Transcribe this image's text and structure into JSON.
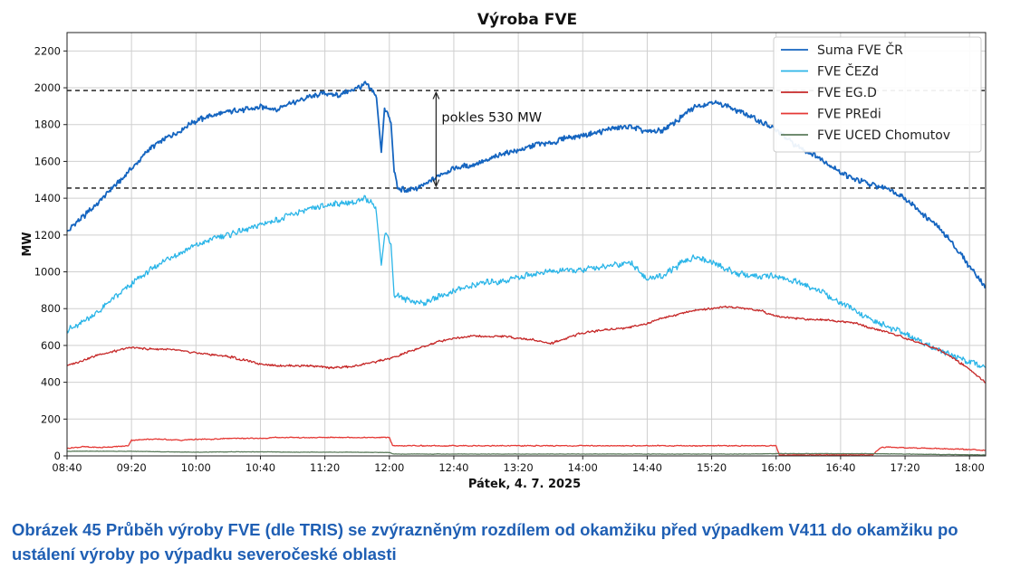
{
  "chart_data": {
    "type": "line",
    "title": "Výroba FVE",
    "xlabel": "Pátek, 4. 7. 2025",
    "ylabel": "MW",
    "xlim": [
      520,
      1090
    ],
    "ylim": [
      0,
      2300
    ],
    "x_unit": "minutes since midnight",
    "x_ticks": [
      520,
      560,
      600,
      640,
      680,
      720,
      760,
      800,
      840,
      880,
      920,
      960,
      1000,
      1040,
      1080
    ],
    "x_tick_labels": [
      "08:40",
      "09:20",
      "10:00",
      "10:40",
      "11:20",
      "12:00",
      "12:40",
      "13:20",
      "14:00",
      "14:40",
      "15:20",
      "16:00",
      "16:40",
      "17:20",
      "18:00"
    ],
    "y_ticks": [
      0,
      200,
      400,
      600,
      800,
      1000,
      1200,
      1400,
      1600,
      1800,
      2000,
      2200
    ],
    "y_tick_labels": [
      "0",
      "200",
      "400",
      "600",
      "800",
      "1000",
      "1200",
      "1400",
      "1600",
      "1800",
      "2000",
      "2200"
    ],
    "grid": true,
    "legend_position": "top-right",
    "series": [
      {
        "name": "Suma FVE ČR",
        "color": "#1565c0",
        "x": [
          520,
          530,
          540,
          550,
          560,
          570,
          580,
          590,
          600,
          610,
          620,
          630,
          640,
          650,
          660,
          670,
          680,
          690,
          700,
          705,
          710,
          712,
          715,
          717,
          719,
          721,
          723,
          725,
          730,
          740,
          750,
          760,
          770,
          780,
          790,
          800,
          810,
          820,
          830,
          840,
          850,
          860,
          870,
          880,
          890,
          900,
          910,
          920,
          930,
          940,
          950,
          960,
          970,
          980,
          990,
          1000,
          1010,
          1020,
          1030,
          1040,
          1050,
          1060,
          1070,
          1080,
          1090
        ],
        "y": [
          1220,
          1300,
          1380,
          1470,
          1560,
          1660,
          1720,
          1770,
          1820,
          1850,
          1870,
          1880,
          1900,
          1880,
          1920,
          1950,
          1970,
          1960,
          2000,
          2020,
          1980,
          1940,
          1650,
          1880,
          1870,
          1800,
          1550,
          1460,
          1440,
          1460,
          1520,
          1560,
          1580,
          1600,
          1640,
          1660,
          1690,
          1700,
          1730,
          1740,
          1760,
          1780,
          1790,
          1760,
          1770,
          1830,
          1900,
          1920,
          1900,
          1860,
          1820,
          1770,
          1700,
          1650,
          1600,
          1540,
          1500,
          1470,
          1450,
          1400,
          1320,
          1250,
          1150,
          1030,
          920
        ]
      },
      {
        "name": "FVE ČEZd",
        "color": "#2bb5e8",
        "x": [
          520,
          530,
          540,
          550,
          560,
          570,
          580,
          590,
          600,
          610,
          620,
          630,
          640,
          650,
          660,
          670,
          680,
          690,
          700,
          705,
          710,
          712,
          715,
          717,
          719,
          721,
          723,
          725,
          730,
          740,
          750,
          760,
          770,
          780,
          790,
          800,
          810,
          820,
          830,
          840,
          850,
          860,
          870,
          880,
          890,
          900,
          910,
          920,
          930,
          940,
          950,
          960,
          970,
          980,
          990,
          1000,
          1010,
          1020,
          1030,
          1040,
          1050,
          1060,
          1070,
          1080,
          1090
        ],
        "y": [
          680,
          730,
          790,
          860,
          930,
          1000,
          1060,
          1100,
          1140,
          1180,
          1200,
          1230,
          1260,
          1280,
          1310,
          1340,
          1360,
          1370,
          1380,
          1400,
          1370,
          1330,
          1040,
          1200,
          1190,
          1150,
          860,
          880,
          850,
          830,
          860,
          900,
          920,
          940,
          950,
          970,
          990,
          1000,
          1010,
          1010,
          1020,
          1040,
          1050,
          960,
          980,
          1040,
          1080,
          1060,
          1010,
          980,
          970,
          980,
          950,
          920,
          880,
          830,
          780,
          740,
          700,
          660,
          620,
          580,
          540,
          510,
          480
        ]
      },
      {
        "name": "FVE EG.D",
        "color": "#c62828",
        "x": [
          520,
          530,
          540,
          550,
          560,
          570,
          580,
          590,
          600,
          610,
          620,
          630,
          640,
          650,
          660,
          670,
          680,
          690,
          700,
          705,
          710,
          712,
          715,
          717,
          719,
          721,
          723,
          725,
          730,
          740,
          750,
          760,
          770,
          780,
          790,
          800,
          810,
          820,
          830,
          840,
          850,
          860,
          870,
          880,
          890,
          900,
          910,
          920,
          930,
          940,
          950,
          960,
          970,
          980,
          990,
          1000,
          1010,
          1020,
          1030,
          1040,
          1050,
          1060,
          1070,
          1080,
          1090
        ],
        "y": [
          490,
          520,
          550,
          570,
          590,
          580,
          580,
          570,
          560,
          550,
          540,
          520,
          500,
          490,
          490,
          490,
          480,
          480,
          490,
          500,
          510,
          510,
          520,
          520,
          530,
          530,
          540,
          540,
          560,
          590,
          620,
          640,
          650,
          650,
          650,
          640,
          630,
          610,
          640,
          670,
          680,
          690,
          700,
          720,
          750,
          770,
          790,
          800,
          810,
          800,
          790,
          760,
          750,
          740,
          740,
          730,
          720,
          690,
          670,
          640,
          610,
          580,
          530,
          470,
          400
        ]
      },
      {
        "name": "FVE PREdi",
        "color": "#e53935",
        "x": [
          520,
          530,
          540,
          550,
          558,
          560,
          570,
          580,
          590,
          600,
          610,
          620,
          630,
          640,
          650,
          660,
          670,
          680,
          690,
          700,
          710,
          720,
          722,
          730,
          760,
          800,
          840,
          880,
          920,
          960,
          962,
          980,
          1000,
          1020,
          1025,
          1030,
          1040,
          1060,
          1080,
          1090
        ],
        "y": [
          40,
          50,
          45,
          50,
          55,
          85,
          90,
          90,
          85,
          90,
          90,
          95,
          95,
          95,
          100,
          100,
          100,
          100,
          100,
          100,
          100,
          100,
          55,
          55,
          55,
          55,
          55,
          55,
          55,
          55,
          5,
          5,
          5,
          5,
          45,
          48,
          45,
          40,
          35,
          30
        ]
      },
      {
        "name": "FVE UCED Chomutov",
        "color": "#5b7b5b",
        "x": [
          520,
          540,
          560,
          580,
          600,
          620,
          640,
          660,
          680,
          700,
          720,
          723,
          740,
          780,
          820,
          860,
          900,
          940,
          960,
          980,
          1000,
          1020,
          1040,
          1060,
          1080,
          1090
        ],
        "y": [
          25,
          25,
          25,
          22,
          20,
          22,
          22,
          20,
          20,
          20,
          18,
          10,
          10,
          10,
          10,
          10,
          10,
          10,
          12,
          12,
          12,
          12,
          10,
          8,
          6,
          5
        ]
      }
    ],
    "reference_lines": [
      {
        "y": 1985,
        "style": "dashed",
        "color": "#111111"
      },
      {
        "y": 1455,
        "style": "dashed",
        "color": "#111111"
      }
    ],
    "annotation": {
      "text": "pokles 530 MW",
      "x": 749,
      "y_from": 1985,
      "y_to": 1455
    }
  },
  "caption": "Obrázek 45 Průběh výroby FVE (dle TRIS) se zvýrazněným rozdílem od okamžiku před výpadkem V411 do okamžiku po ustálení výroby po výpadku severočeské oblasti"
}
